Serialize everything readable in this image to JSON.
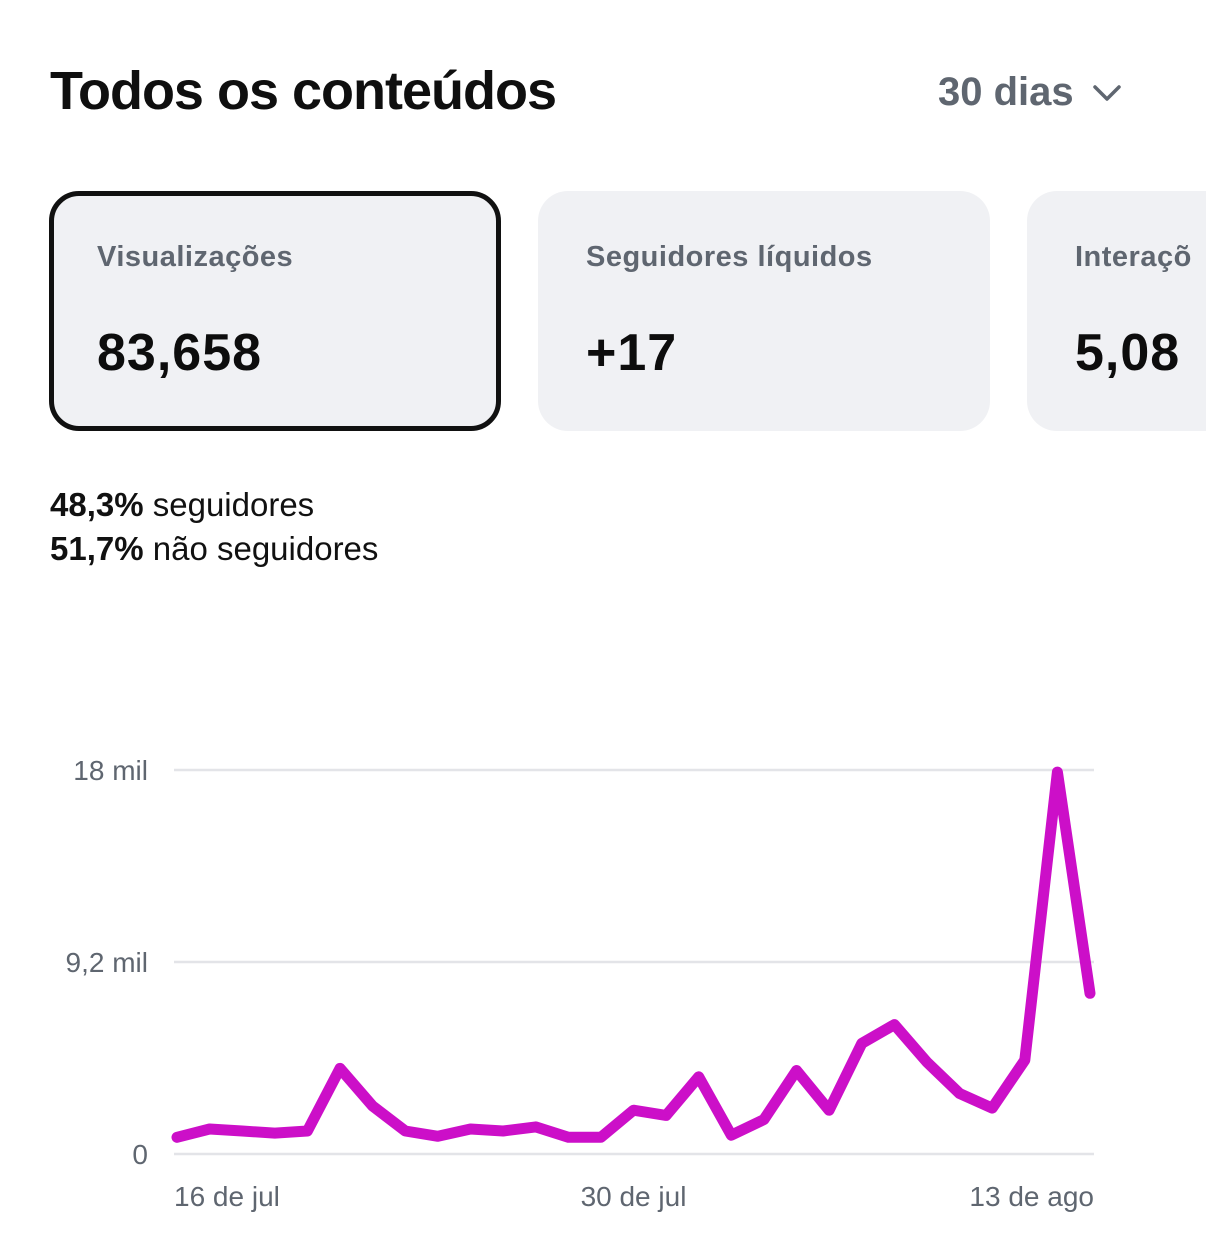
{
  "header": {
    "title": "Todos os conteúdos",
    "period": "30 dias",
    "period_icon": "chevron-down-icon"
  },
  "cards": [
    {
      "label": "Visualizações",
      "value": "83,658",
      "selected": true
    },
    {
      "label": "Seguidores líquidos",
      "value": "+17",
      "selected": false
    },
    {
      "label": "Interaçõ",
      "value": "5,08",
      "selected": false
    }
  ],
  "breakdown": {
    "followers_pct": "48,3%",
    "followers_label": " seguidores",
    "nonfollowers_pct": "51,7%",
    "nonfollowers_label": " não seguidores"
  },
  "colors": {
    "line": "#cc0fc8",
    "grid": "#e3e4e8",
    "tick": "#5f6670",
    "card_bg": "#f0f1f4"
  },
  "chart_data": {
    "type": "line",
    "ytick_labels": [
      "0",
      "9,2 mil",
      "18 mil"
    ],
    "ytick_values": [
      0,
      9200,
      18400
    ],
    "ylim": [
      0,
      18400
    ],
    "xtick_labels": [
      "16 de jul",
      "30 de jul",
      "13 de ago"
    ],
    "xtick_index": [
      0,
      14,
      28
    ],
    "grid": true,
    "series": [
      {
        "values": [
          800,
          1200,
          1100,
          1000,
          1100,
          4100,
          2300,
          1100,
          850,
          1200,
          1100,
          1300,
          800,
          800,
          2100,
          1850,
          3700,
          900,
          1650,
          4000,
          2100,
          5300,
          6200,
          4400,
          2900,
          2200,
          4500,
          18300,
          7700
        ]
      }
    ]
  }
}
